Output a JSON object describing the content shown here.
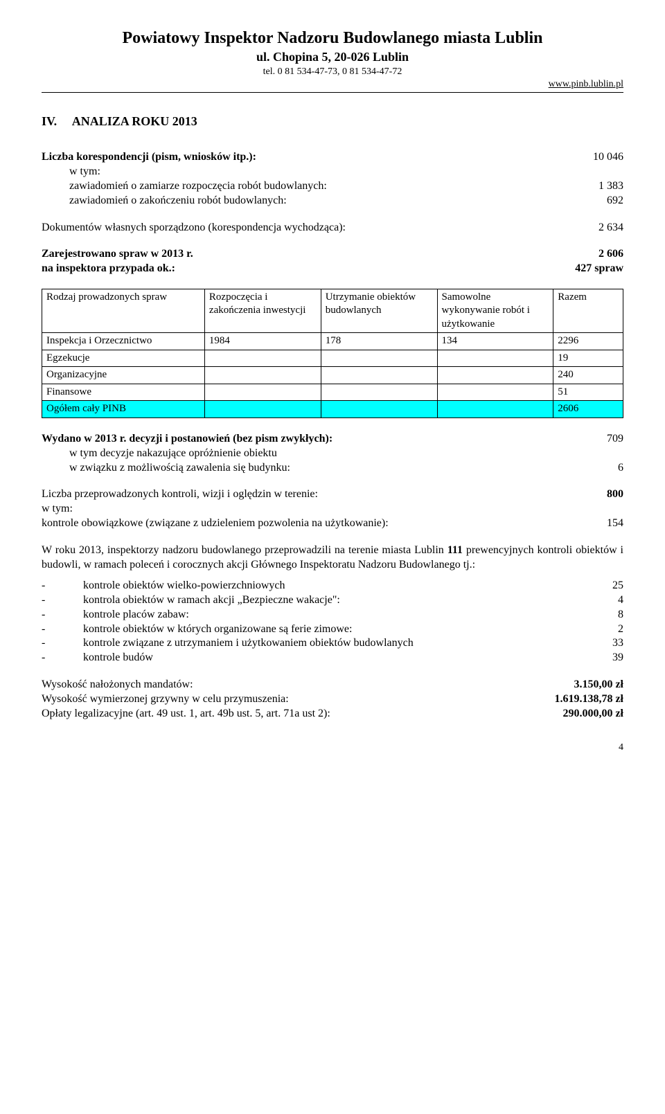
{
  "header": {
    "title": "Powiatowy Inspektor Nadzoru Budowlanego miasta Lublin",
    "address": "ul. Chopina 5, 20-026 Lublin",
    "tel": "tel. 0 81 534-47-73, 0 81 534-47-72",
    "link": "www.pinb.lublin.pl"
  },
  "section": {
    "num": "IV.",
    "title": "ANALIZA ROKU  2013"
  },
  "lines": {
    "l1": "Liczba korespondencji (pism, wniosków itp.):",
    "v1": "10 046",
    "wtym": "w tym:",
    "l2": "zawiadomień o zamiarze rozpoczęcia robót budowlanych:",
    "v2": "1 383",
    "l3": "zawiadomień o zakończeniu robót budowlanych:",
    "v3": "692",
    "l4": "Dokumentów własnych sporządzono (korespondencja wychodząca):",
    "v4": "2 634",
    "l5": "Zarejestrowano spraw w 2013 r.",
    "v5": "2 606",
    "l6": "na inspektora przypada ok.:",
    "v6": "427 spraw"
  },
  "table": {
    "headers": {
      "c1": "Rodzaj prowadzonych spraw",
      "c2": "Rozpoczęcia i zakończenia inwestycji",
      "c3": " Utrzymanie obiektów budowlanych",
      "c4": "Samowolne wykonywanie robót i użytkowanie",
      "c5": "Razem"
    },
    "rows": [
      {
        "c1": "Inspekcja i Orzecznictwo",
        "c2": "1984",
        "c3": "178",
        "c4": "134",
        "c5": "2296",
        "hl": false
      },
      {
        "c1": "Egzekucje",
        "c2": "",
        "c3": "",
        "c4": "",
        "c5": "19",
        "hl": false
      },
      {
        "c1": "Organizacyjne",
        "c2": "",
        "c3": "",
        "c4": "",
        "c5": "240",
        "hl": false
      },
      {
        "c1": "Finansowe",
        "c2": "",
        "c3": "",
        "c4": "",
        "c5": "51",
        "hl": false
      },
      {
        "c1": "Ogółem cały PINB",
        "c2": "",
        "c3": "",
        "c4": "",
        "c5": "2606",
        "hl": true
      }
    ],
    "highlight_color": "#00ffff"
  },
  "wydano": {
    "l1a": "Wydano w 2013 r. decyzji i postanowień (bez pism zwykłych):",
    "v1": "709",
    "l2": "w tym decyzje   nakazujące opróżnienie obiektu",
    "l3": "w związku z możliwością zawalenia się budynku:",
    "v3": "6"
  },
  "kontrole": {
    "l1": "Liczba przeprowadzonych kontroli, wizji i oględzin w terenie:",
    "v1": "800",
    "wtym": "w tym:",
    "l2": "kontrole obowiązkowe (związane z udzieleniem pozwolenia na użytkowanie):",
    "v2": "154"
  },
  "para": {
    "p1": "W roku 2013, inspektorzy nadzoru budowlanego przeprowadzili na terenie miasta Lublin ",
    "p1b": "111",
    "p2": " prewencyjnych kontroli obiektów i budowli, w ramach poleceń i corocznych akcji Głównego Inspektoratu Nadzoru Budowlanego tj.:"
  },
  "list": [
    {
      "t": "kontrole obiektów wielko-powierzchniowych",
      "v": "25"
    },
    {
      "t": "kontrola obiektów w ramach akcji „Bezpieczne wakacje\":",
      "v": "4"
    },
    {
      "t": "kontrole placów zabaw:",
      "v": "8"
    },
    {
      "t": "kontrole obiektów w których organizowane są ferie zimowe:",
      "v": "2"
    },
    {
      "t": "kontrole związane z utrzymaniem i użytkowaniem obiektów budowlanych",
      "v": "33"
    },
    {
      "t": "kontrole budów",
      "v": "39"
    }
  ],
  "footer": {
    "l1": "Wysokość nałożonych mandatów:",
    "v1": "3.150,00 zł",
    "l2": "Wysokość wymierzonej grzywny w celu przymuszenia:",
    "v2": "1.619.138,78 zł",
    "l3": "Opłaty legalizacyjne (art. 49 ust. 1, art. 49b ust. 5, art. 71a ust 2):",
    "v3": "290.000,00 zł"
  },
  "page": "4"
}
